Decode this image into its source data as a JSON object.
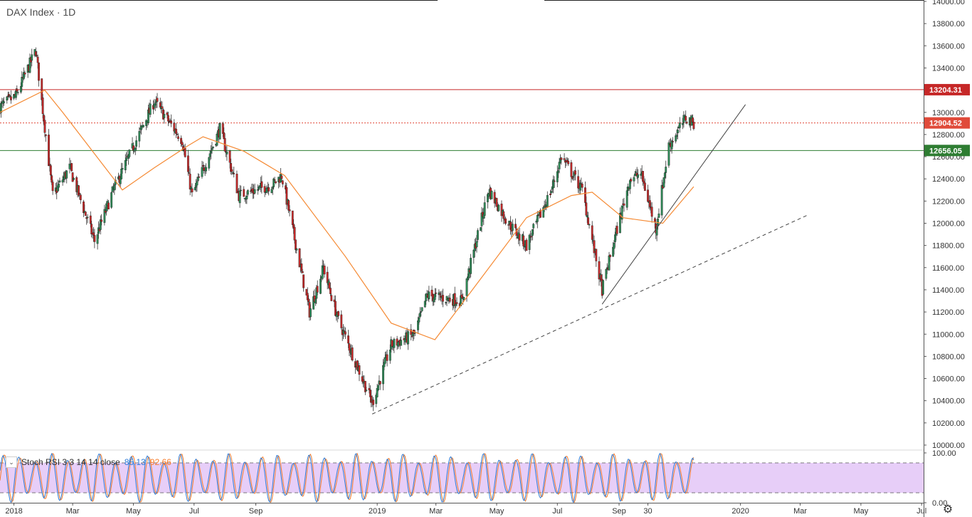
{
  "header": {
    "title": "DAX Index · 1D"
  },
  "colors": {
    "up": "#2e8b57",
    "down": "#c62828",
    "ma": "#f58a34",
    "resistance": "#c62828",
    "support": "#2e7d32",
    "current": "#e04a3a",
    "stoch_k": "#2e7bd6",
    "stoch_d": "#f57c2c",
    "stoch_band": "#e3c6f7"
  },
  "oscillator": {
    "label": "Stoch RSI 3 3 14 14 close",
    "k": "85.13",
    "d": "92.66",
    "ticks": [
      "100.00",
      "0.00"
    ],
    "levels": [
      80,
      20
    ]
  },
  "chart_data": {
    "type": "candlestick",
    "title": "DAX Index · 1D",
    "ylim": [
      10000,
      14000
    ],
    "y_ticks": [
      "10000.00",
      "10200.00",
      "10400.00",
      "10600.00",
      "10800.00",
      "11000.00",
      "11200.00",
      "11400.00",
      "11600.00",
      "11800.00",
      "12000.00",
      "12200.00",
      "12400.00",
      "12600.00",
      "12800.00",
      "13000.00",
      "13200.00",
      "13400.00",
      "13600.00",
      "13800.00",
      "14000.00"
    ],
    "xlim": [
      "2017-12-18",
      "2020-07-03"
    ],
    "x_ticks": [
      {
        "label": "2018",
        "date": "2018-01-01"
      },
      {
        "label": "Mar",
        "date": "2018-03-01"
      },
      {
        "label": "May",
        "date": "2018-05-01"
      },
      {
        "label": "Jul",
        "date": "2018-07-01"
      },
      {
        "label": "Sep",
        "date": "2018-09-01"
      },
      {
        "label": "2019",
        "date": "2019-01-01"
      },
      {
        "label": "Mar",
        "date": "2019-03-01"
      },
      {
        "label": "May",
        "date": "2019-05-01"
      },
      {
        "label": "Jul",
        "date": "2019-07-01"
      },
      {
        "label": "Sep",
        "date": "2019-09-01"
      },
      {
        "label": "30",
        "date": "2019-09-30"
      },
      {
        "label": "2020",
        "date": "2020-01-01"
      },
      {
        "label": "Mar",
        "date": "2020-03-01"
      },
      {
        "label": "May",
        "date": "2020-05-01"
      },
      {
        "label": "Jul",
        "date": "2020-07-01"
      }
    ],
    "price_path": [
      [
        "2017-12-18",
        13050
      ],
      [
        "2018-01-03",
        13150
      ],
      [
        "2018-01-23",
        13560
      ],
      [
        "2018-02-09",
        12250
      ],
      [
        "2018-02-26",
        12500
      ],
      [
        "2018-03-23",
        11840
      ],
      [
        "2018-04-10",
        12280
      ],
      [
        "2018-05-22",
        13100
      ],
      [
        "2018-06-19",
        12750
      ],
      [
        "2018-06-29",
        12250
      ],
      [
        "2018-07-27",
        12850
      ],
      [
        "2018-08-15",
        12250
      ],
      [
        "2018-09-18",
        12350
      ],
      [
        "2018-09-27",
        12430
      ],
      [
        "2018-10-25",
        11200
      ],
      [
        "2018-11-08",
        11600
      ],
      [
        "2018-11-22",
        11150
      ],
      [
        "2018-12-27",
        10380
      ],
      [
        "2019-01-15",
        10900
      ],
      [
        "2019-02-08",
        11000
      ],
      [
        "2019-02-20",
        11350
      ],
      [
        "2019-03-27",
        11300
      ],
      [
        "2019-04-23",
        12300
      ],
      [
        "2019-05-13",
        12000
      ],
      [
        "2019-05-31",
        11800
      ],
      [
        "2019-06-25",
        12300
      ],
      [
        "2019-07-05",
        12600
      ],
      [
        "2019-07-26",
        12300
      ],
      [
        "2019-08-15",
        11400
      ],
      [
        "2019-08-30",
        11950
      ],
      [
        "2019-09-12",
        12400
      ],
      [
        "2019-09-23",
        12450
      ],
      [
        "2019-10-08",
        11950
      ],
      [
        "2019-10-21",
        12700
      ],
      [
        "2019-11-07",
        12950
      ],
      [
        "2019-11-15",
        12904.52
      ]
    ],
    "moving_average": [
      [
        "2017-12-18",
        13000
      ],
      [
        "2018-02-01",
        13200
      ],
      [
        "2018-02-19",
        13000
      ],
      [
        "2018-04-20",
        12300
      ],
      [
        "2018-05-22",
        12500
      ],
      [
        "2018-06-25",
        12700
      ],
      [
        "2018-07-10",
        12780
      ],
      [
        "2018-08-20",
        12650
      ],
      [
        "2018-09-30",
        12430
      ],
      [
        "2018-11-30",
        11700
      ],
      [
        "2019-01-15",
        11100
      ],
      [
        "2019-02-28",
        10950
      ],
      [
        "2019-04-15",
        11500
      ],
      [
        "2019-05-31",
        12050
      ],
      [
        "2019-07-15",
        12250
      ],
      [
        "2019-08-05",
        12280
      ],
      [
        "2019-09-05",
        12050
      ],
      [
        "2019-10-15",
        12000
      ],
      [
        "2019-11-15",
        12330
      ]
    ],
    "horizontal_levels": [
      {
        "label": "13204.31",
        "value": 13204.31,
        "style": "solid",
        "color": "#c62828"
      },
      {
        "label": "12904.52",
        "value": 12904.52,
        "style": "dotted",
        "color": "#e04a3a"
      },
      {
        "label": "12656.05",
        "value": 12656.05,
        "style": "solid",
        "color": "#2e7d32"
      }
    ],
    "trendlines": [
      {
        "style": "dashed",
        "from": [
          "2018-12-27",
          10280
        ],
        "to": [
          "2020-03-10",
          12080
        ]
      },
      {
        "style": "solid",
        "from": [
          "2019-08-15",
          11270
        ],
        "to": [
          "2020-01-06",
          13070
        ]
      }
    ],
    "stoch_rsi": {
      "label": "Stoch RSI 3 3 14 14 close",
      "k": 85.13,
      "d": 92.66,
      "ylim": [
        0,
        100
      ],
      "upper": 80,
      "lower": 20
    }
  }
}
